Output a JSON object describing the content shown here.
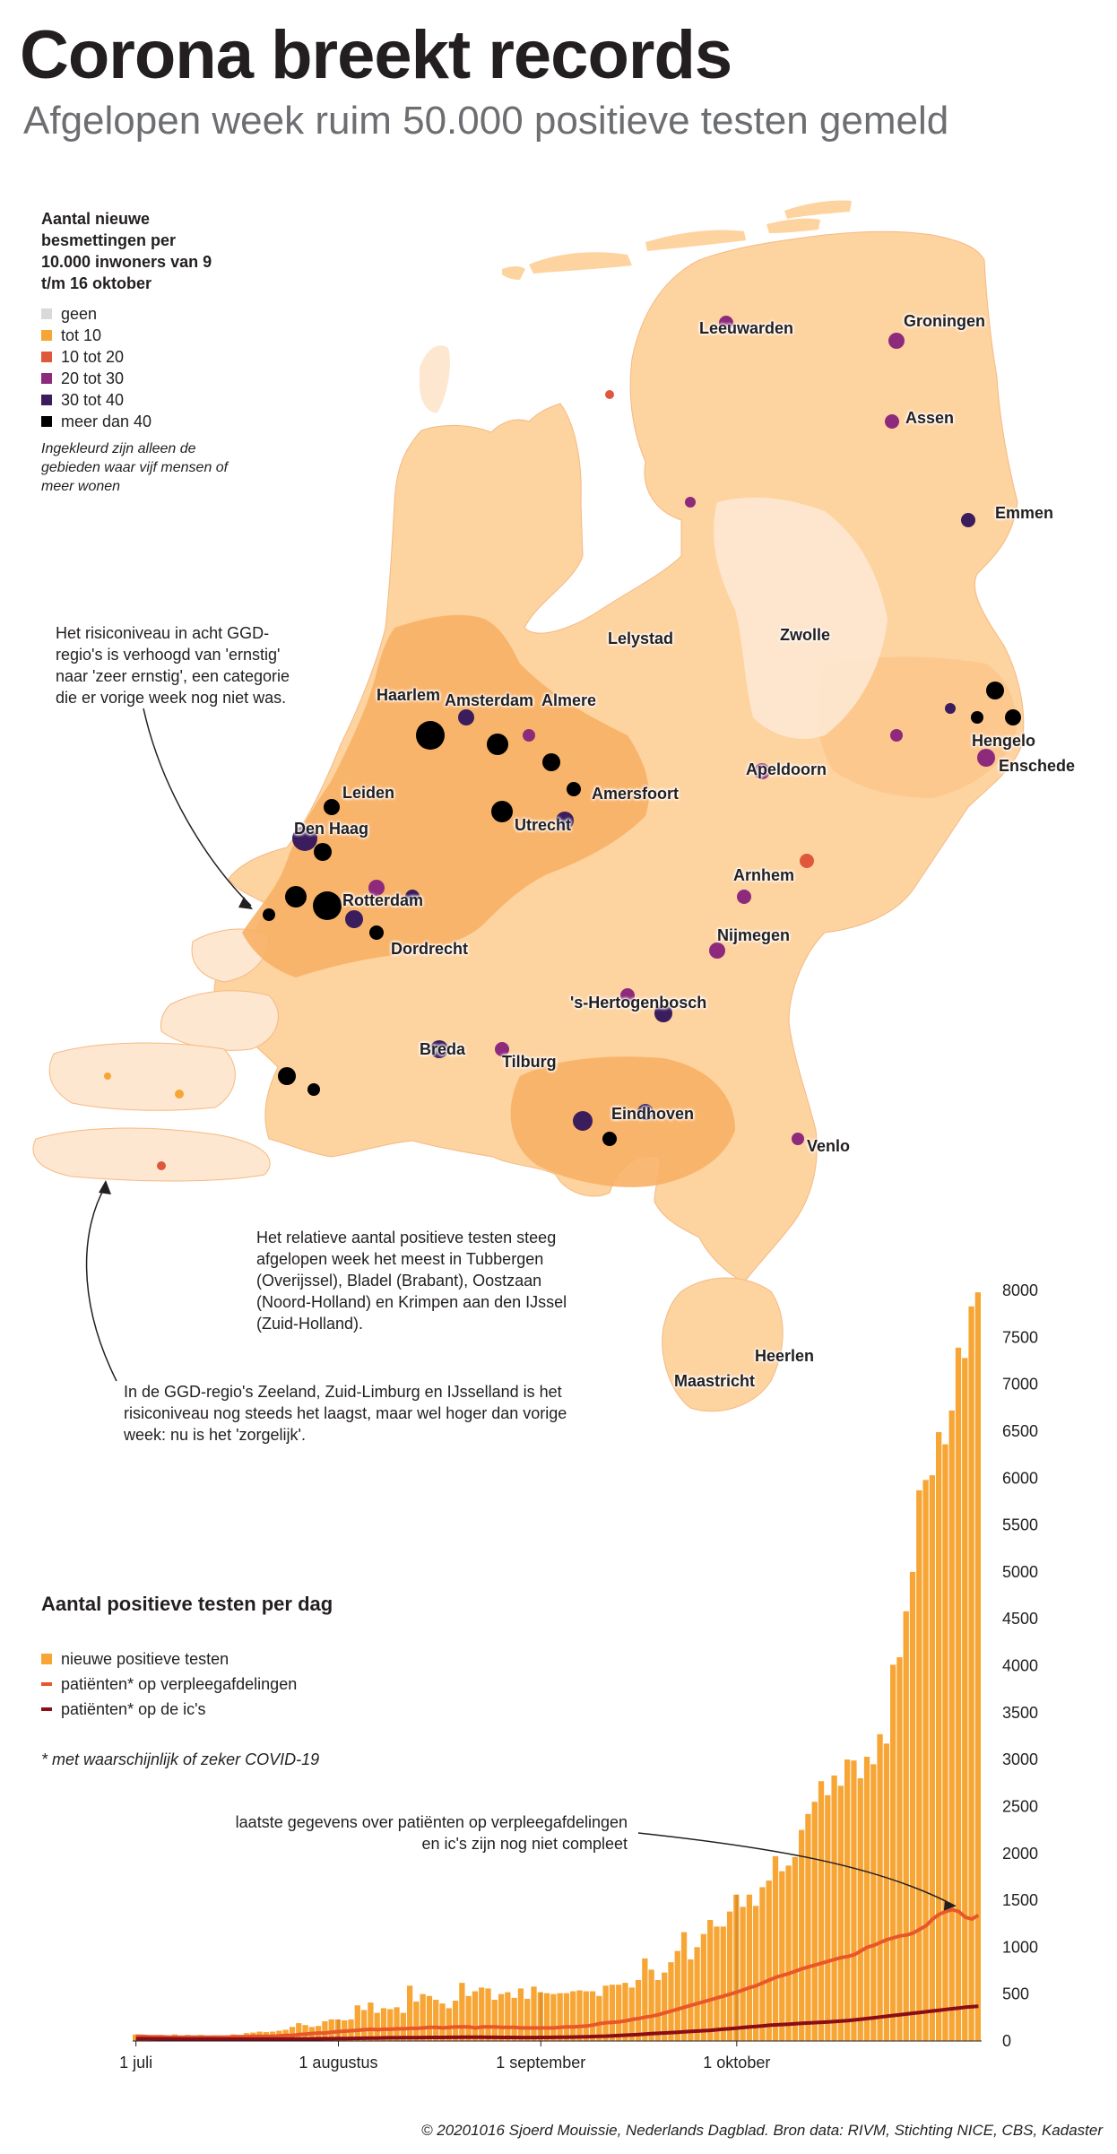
{
  "title": "Corona breekt records",
  "subtitle": "Afgelopen week ruim 50.000 positieve testen gemeld",
  "map_legend": {
    "title": "Aantal nieuwe besmettingen per 10.000 inwoners van 9 t/m 16 oktober",
    "items": [
      {
        "label": "geen",
        "color": "#d9d9d9"
      },
      {
        "label": "tot 10",
        "color": "#f7a535"
      },
      {
        "label": "10 tot 20",
        "color": "#e0583c"
      },
      {
        "label": "20 tot 30",
        "color": "#8e2a7c"
      },
      {
        "label": "30 tot 40",
        "color": "#3b1d5e"
      },
      {
        "label": "meer dan 40",
        "color": "#000000"
      }
    ],
    "note": "Ingekleurd zijn alleen de gebieden waar vijf mensen of meer wonen"
  },
  "annotations": {
    "risk_up": "Het risiconiveau in acht GGD-regio's is verhoogd van 'ernstig' naar 'zeer ernstig', een categorie die er vorige week nog niet was.",
    "relative": "Het relatieve aantal positieve testen steeg afgelopen week het meest in Tubbergen (Overijssel), Bladel (Brabant), Oostzaan (Noord-Holland) en Krimpen aan den IJssel (Zuid-Holland).",
    "lowest": "In de GGD-regio's Zeeland, Zuid-Limburg en IJsselland is het risiconiveau nog steeds het laagst, maar wel hoger dan vorige week: nu is het 'zorgelijk'.",
    "incomplete": "laatste gegevens over patiënten op verpleegafdelingen en ic's zijn nog niet compleet"
  },
  "cities": [
    "Leeuwarden",
    "Groningen",
    "Assen",
    "Emmen",
    "Lelystad",
    "Zwolle",
    "Haarlem",
    "Amsterdam",
    "Almere",
    "Hengelo",
    "Enschede",
    "Leiden",
    "Apeldoorn",
    "Amersfoort",
    "Den Haag",
    "Utrecht",
    "Arnhem",
    "Rotterdam",
    "Nijmegen",
    "Dordrecht",
    "'s-Hertogenbosch",
    "Breda",
    "Tilburg",
    "Eindhoven",
    "Venlo",
    "Heerlen",
    "Maastricht"
  ],
  "chart_legend": {
    "title": "Aantal positieve testen per dag",
    "items": [
      {
        "label": "nieuwe positieve testen",
        "color": "#f7a535"
      },
      {
        "label": "patiënten* op verpleegafdelingen",
        "color": "#e8572a"
      },
      {
        "label": "patiënten* op de ic's",
        "color": "#8b0d17"
      }
    ],
    "footnote": "* met waarschijnlijk of zeker COVID-19"
  },
  "chart_data": {
    "type": "bar",
    "x_start": "2020-07-01",
    "x_ticks": [
      "1 juli",
      "1 augustus",
      "1 september",
      "1 oktober"
    ],
    "ylim": [
      0,
      8000
    ],
    "y_ticks": [
      0,
      500,
      1000,
      1500,
      2000,
      2500,
      3000,
      3500,
      4000,
      4500,
      5000,
      5500,
      6000,
      6500,
      7000,
      7500,
      8000
    ],
    "series": [
      {
        "name": "nieuwe positieve testen",
        "type": "bar",
        "values": [
          70,
          60,
          55,
          45,
          50,
          60,
          70,
          55,
          65,
          60,
          65,
          55,
          60,
          60,
          60,
          70,
          65,
          85,
          90,
          100,
          95,
          100,
          110,
          120,
          150,
          190,
          170,
          150,
          160,
          210,
          230,
          230,
          220,
          230,
          380,
          330,
          410,
          300,
          350,
          340,
          360,
          300,
          590,
          420,
          500,
          480,
          440,
          400,
          350,
          430,
          620,
          480,
          530,
          570,
          560,
          440,
          500,
          520,
          460,
          560,
          450,
          580,
          520,
          510,
          500,
          510,
          510,
          530,
          540,
          530,
          530,
          480,
          590,
          600,
          600,
          620,
          570,
          650,
          880,
          760,
          650,
          730,
          840,
          960,
          1160,
          870,
          1000,
          1140,
          1290,
          1220,
          1220,
          1380,
          1560,
          1430,
          1560,
          1440,
          1640,
          1710,
          1970,
          1810,
          1870,
          1960,
          2250,
          2420,
          2550,
          2770,
          2620,
          2830,
          2720,
          3000,
          2990,
          2800,
          3030,
          2950,
          3270,
          3170,
          4010,
          4090,
          4580,
          5000,
          5870,
          5980,
          6030,
          6490,
          6360,
          6720,
          7390,
          7280,
          7830,
          7980
        ]
      },
      {
        "name": "patiënten* op verpleegafdelingen",
        "type": "line",
        "values": [
          50,
          50,
          45,
          45,
          45,
          40,
          40,
          40,
          40,
          40,
          40,
          40,
          40,
          40,
          40,
          45,
          45,
          45,
          50,
          50,
          50,
          50,
          55,
          60,
          60,
          70,
          75,
          80,
          85,
          85,
          95,
          100,
          105,
          110,
          115,
          120,
          125,
          120,
          125,
          125,
          130,
          130,
          135,
          135,
          140,
          145,
          145,
          140,
          145,
          150,
          150,
          150,
          140,
          150,
          150,
          150,
          145,
          145,
          145,
          140,
          140,
          140,
          140,
          140,
          140,
          145,
          150,
          150,
          155,
          160,
          170,
          185,
          195,
          200,
          205,
          215,
          230,
          240,
          255,
          265,
          280,
          300,
          320,
          340,
          360,
          380,
          400,
          420,
          440,
          460,
          480,
          500,
          520,
          545,
          570,
          590,
          620,
          650,
          680,
          700,
          720,
          745,
          770,
          790,
          810,
          830,
          850,
          870,
          890,
          900,
          920,
          960,
          1000,
          1020,
          1050,
          1080,
          1100,
          1120,
          1130,
          1150,
          1190,
          1230,
          1300,
          1350,
          1380,
          1400,
          1380,
          1320,
          1300,
          1340
        ]
      },
      {
        "name": "patiënten* op de ic's",
        "type": "line",
        "values": [
          25,
          25,
          25,
          24,
          24,
          23,
          23,
          22,
          22,
          22,
          21,
          21,
          21,
          20,
          20,
          20,
          20,
          20,
          20,
          20,
          20,
          20,
          20,
          20,
          21,
          22,
          22,
          23,
          24,
          25,
          25,
          26,
          27,
          28,
          29,
          30,
          31,
          32,
          33,
          34,
          34,
          35,
          35,
          36,
          37,
          38,
          38,
          38,
          39,
          39,
          40,
          40,
          40,
          40,
          39,
          39,
          38,
          38,
          38,
          37,
          37,
          37,
          38,
          38,
          39,
          40,
          41,
          42,
          44,
          46,
          48,
          50,
          52,
          55,
          58,
          62,
          66,
          70,
          74,
          78,
          82,
          86,
          90,
          94,
          98,
          102,
          106,
          110,
          114,
          120,
          126,
          132,
          138,
          144,
          150,
          156,
          162,
          168,
          172,
          176,
          180,
          184,
          188,
          192,
          196,
          200,
          204,
          208,
          212,
          218,
          225,
          232,
          240,
          248,
          256,
          264,
          272,
          280,
          288,
          296,
          304,
          312,
          320,
          328,
          336,
          344,
          352,
          360,
          366,
          370
        ]
      }
    ]
  },
  "footer": "© 20201016 Sjoerd Mouissie, Nederlands Dagblad. Bron data: RIVM, Stichting NICE, CBS, Kadaster"
}
